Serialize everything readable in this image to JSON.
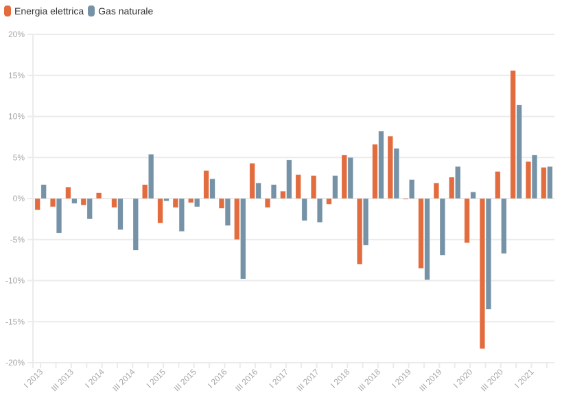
{
  "legend": {
    "items": [
      {
        "label": "Energia elettrica",
        "color": "#e36c3f"
      },
      {
        "label": "Gas naturale",
        "color": "#7592a6"
      }
    ]
  },
  "chart_data": {
    "type": "bar",
    "title": "",
    "xlabel": "",
    "ylabel": "",
    "ylim": [
      -20,
      20
    ],
    "yticks": [
      20,
      15,
      10,
      5,
      0,
      -5,
      -10,
      -15,
      -20
    ],
    "ytick_labels": [
      "20%",
      "15%",
      "10%",
      "5%",
      "0%",
      "-5%",
      "-10%",
      "-15%",
      "-20%"
    ],
    "grid": true,
    "legend_position": "top-left",
    "categories": [
      "I 2013",
      "II 2013",
      "III 2013",
      "IV 2013",
      "I 2014",
      "II 2014",
      "III 2014",
      "IV 2014",
      "I 2015",
      "II 2015",
      "III 2015",
      "IV 2015",
      "I 2016",
      "II 2016",
      "III 2016",
      "IV 2016",
      "I 2017",
      "II 2017",
      "III 2017",
      "IV 2017",
      "I 2018",
      "II 2018",
      "III 2018",
      "IV 2018",
      "I 2019",
      "II 2019",
      "III 2019",
      "IV 2019",
      "I 2020",
      "II 2020",
      "III 2020",
      "IV 2020",
      "I 2021",
      "II 2021"
    ],
    "xtick_labels": [
      "I 2013",
      "III 2013",
      "I 2014",
      "III 2014",
      "I 2015",
      "III 2015",
      "I 2016",
      "III 2016",
      "I 2017",
      "III 2017",
      "I 2018",
      "III 2018",
      "I 2019",
      "III 2019",
      "I 2020",
      "III 2020",
      "I 2021"
    ],
    "series": [
      {
        "name": "Energia elettrica",
        "color": "#e36c3f",
        "values": [
          -1.4,
          -1.0,
          1.4,
          -0.8,
          0.7,
          -1.1,
          0,
          1.7,
          -3.0,
          -1.1,
          -0.5,
          3.4,
          -1.2,
          -5.0,
          4.3,
          -1.1,
          0.9,
          2.9,
          2.8,
          -0.7,
          5.3,
          -8.0,
          6.6,
          7.6,
          -0.1,
          -8.5,
          1.9,
          2.6,
          -5.4,
          -18.3,
          3.3,
          15.6,
          4.5,
          3.8
        ]
      },
      {
        "name": "Gas naturale",
        "color": "#7592a6",
        "values": [
          1.7,
          -4.2,
          -0.6,
          -2.5,
          0,
          -3.8,
          -6.3,
          5.4,
          -0.3,
          -4.0,
          -1.0,
          2.4,
          -3.3,
          -9.8,
          1.9,
          1.7,
          4.7,
          -2.7,
          -2.9,
          2.8,
          5.0,
          -5.7,
          8.2,
          6.1,
          2.3,
          -9.9,
          -6.9,
          3.9,
          0.8,
          -13.5,
          -6.7,
          11.4,
          5.3,
          3.9
        ]
      }
    ]
  }
}
